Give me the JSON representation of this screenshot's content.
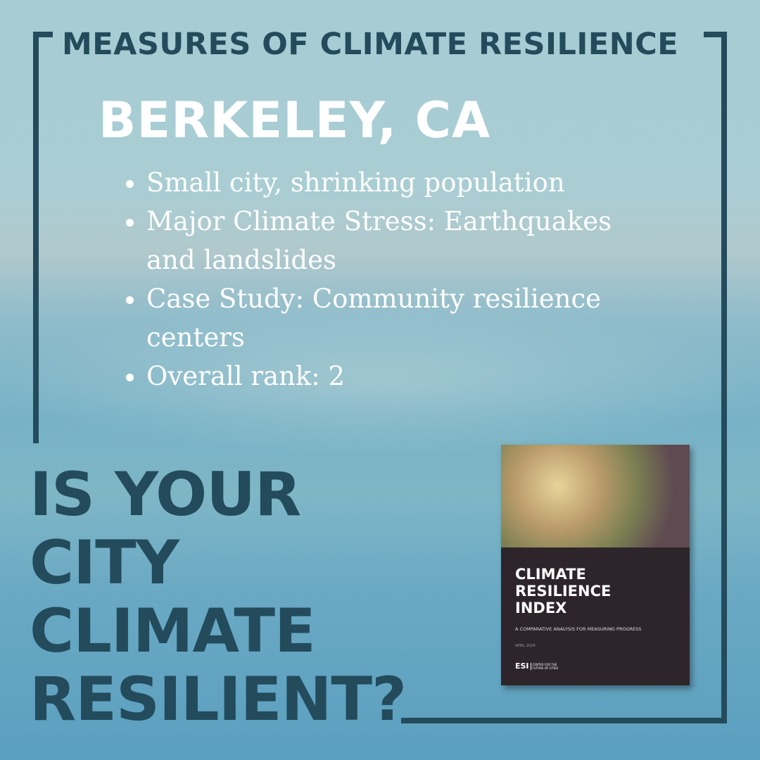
{
  "header": {
    "title": "MEASURES OF CLIMATE RESILIENCE"
  },
  "city": {
    "name": "BERKELEY, CA"
  },
  "bullets": [
    "Small city, shrinking population",
    "Major Climate Stress: Earthquakes and landslides",
    "Case Study: Community resilience centers",
    "Overall rank: 2"
  ],
  "question": {
    "line1": "IS YOUR",
    "line2": "CITY",
    "line3": "CLIMATE",
    "line4": "RESILIENT?"
  },
  "book": {
    "title1": "CLIMATE",
    "title2": "RESILIENCE",
    "title3": "INDEX",
    "subtitle": "A COMPARATIVE ANALYSIS FOR MEASURING PROGRESS",
    "date": "APRIL 2024",
    "logo": "ESI",
    "org1": "CENTER FOR THE",
    "org2": "FUTURE OF CITIES"
  },
  "colors": {
    "frame": "#234b5c",
    "text_light": "#ffffff",
    "book_bg": "#2e252b"
  }
}
